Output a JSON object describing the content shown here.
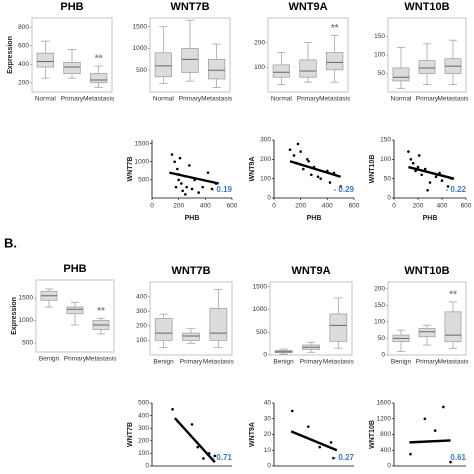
{
  "panel_labels": [
    "B."
  ],
  "chart_data": [
    {
      "type": "box",
      "title": "PHB",
      "ylabel": "Expression",
      "categories": [
        "Normal",
        "Primary",
        "Metastasis"
      ],
      "whisker_low": [
        250,
        250,
        150
      ],
      "q1": [
        370,
        300,
        200
      ],
      "median": [
        430,
        370,
        230
      ],
      "q3": [
        520,
        420,
        300
      ],
      "whisker_high": [
        650,
        560,
        380
      ],
      "significance": [
        null,
        null,
        "**"
      ],
      "ylim": [
        100,
        900
      ],
      "yticks": [
        200,
        400,
        600,
        800
      ]
    },
    {
      "type": "box",
      "title": "WNT7B",
      "categories": [
        "Normal",
        "Primary",
        "Metastasis"
      ],
      "whisker_low": [
        200,
        250,
        100
      ],
      "q1": [
        350,
        450,
        300
      ],
      "median": [
        600,
        750,
        500
      ],
      "q3": [
        900,
        1000,
        750
      ],
      "whisker_high": [
        1500,
        1650,
        1100
      ],
      "significance": [
        null,
        null,
        null
      ],
      "ylim": [
        0,
        1700
      ],
      "yticks": [
        500,
        1000,
        1500
      ]
    },
    {
      "type": "box",
      "title": "WNT9A",
      "categories": [
        "Normal",
        "Primary",
        "Metastasis"
      ],
      "whisker_low": [
        30,
        40,
        40
      ],
      "q1": [
        60,
        60,
        90
      ],
      "median": [
        80,
        85,
        120
      ],
      "q3": [
        110,
        130,
        160
      ],
      "whisker_high": [
        160,
        200,
        230
      ],
      "significance": [
        null,
        null,
        "**"
      ],
      "ylim": [
        0,
        300
      ],
      "yticks": [
        100,
        200
      ]
    },
    {
      "type": "box",
      "title": "WNT10B",
      "categories": [
        "Normal",
        "Primary",
        "Metastasis"
      ],
      "whisker_low": [
        10,
        20,
        20
      ],
      "q1": [
        30,
        50,
        50
      ],
      "median": [
        40,
        65,
        70
      ],
      "q3": [
        65,
        85,
        90
      ],
      "whisker_high": [
        120,
        130,
        140
      ],
      "significance": [
        null,
        null,
        null
      ],
      "ylim": [
        0,
        200
      ],
      "yticks": [
        50,
        100,
        150
      ]
    },
    {
      "type": "scatter",
      "xlabel": "PHB",
      "ylabel": "WNT7B",
      "r_label": "- 0.19",
      "x": [
        150,
        170,
        180,
        190,
        200,
        210,
        220,
        230,
        250,
        260,
        280,
        300,
        320,
        350,
        380,
        420,
        450,
        480,
        250,
        200
      ],
      "y": [
        1200,
        1000,
        300,
        800,
        500,
        1100,
        400,
        200,
        600,
        300,
        900,
        250,
        500,
        150,
        300,
        700,
        250,
        400,
        100,
        650
      ],
      "fit": {
        "x": [
          130,
          500
        ],
        "y": [
          700,
          400
        ]
      },
      "xlim": [
        0,
        600
      ],
      "xticks": [
        0,
        200,
        400,
        600
      ],
      "ylim": [
        0,
        1600
      ],
      "yticks": [
        500,
        1000,
        1500
      ]
    },
    {
      "type": "scatter",
      "xlabel": "PHB",
      "ylabel": "WNT9A",
      "r_label": "- 0.29",
      "x": [
        120,
        150,
        170,
        200,
        220,
        250,
        280,
        300,
        350,
        400,
        420,
        450,
        500,
        180,
        260,
        330
      ],
      "y": [
        250,
        220,
        180,
        240,
        150,
        200,
        120,
        160,
        100,
        140,
        80,
        130,
        60,
        280,
        190,
        110
      ],
      "fit": {
        "x": [
          120,
          500
        ],
        "y": [
          190,
          110
        ]
      },
      "xlim": [
        0,
        600
      ],
      "xticks": [
        0,
        200,
        400,
        600
      ],
      "ylim": [
        0,
        300
      ],
      "yticks": [
        0,
        100,
        200,
        300
      ]
    },
    {
      "type": "scatter",
      "xlabel": "PHB",
      "ylabel": "WNT10B",
      "r_label": "- 0.22",
      "x": [
        120,
        140,
        160,
        180,
        200,
        230,
        260,
        300,
        350,
        400,
        450,
        480,
        210,
        280,
        380
      ],
      "y": [
        120,
        100,
        90,
        70,
        80,
        60,
        75,
        40,
        55,
        45,
        30,
        50,
        110,
        20,
        65
      ],
      "fit": {
        "x": [
          120,
          500
        ],
        "y": [
          80,
          50
        ]
      },
      "xlim": [
        0,
        600
      ],
      "xticks": [
        0,
        200,
        400,
        600
      ],
      "ylim": [
        0,
        150
      ],
      "yticks": [
        0,
        50,
        100,
        150
      ]
    },
    {
      "type": "box",
      "title": "PHB",
      "ylabel": "Expression",
      "categories": [
        "Benign",
        "Primary",
        "Metastasis"
      ],
      "whisker_low": [
        1300,
        900,
        700
      ],
      "q1": [
        1450,
        1150,
        800
      ],
      "median": [
        1550,
        1250,
        900
      ],
      "q3": [
        1650,
        1300,
        1000
      ],
      "whisker_high": [
        1700,
        1400,
        1050
      ],
      "significance": [
        null,
        null,
        "**"
      ],
      "ylim": [
        300,
        1900
      ],
      "yticks": [
        500,
        1000,
        1500
      ]
    },
    {
      "type": "box",
      "title": "WNT7B",
      "categories": [
        "Benign",
        "Primary",
        "Metastasis"
      ],
      "whisker_low": [
        50,
        80,
        50
      ],
      "q1": [
        100,
        100,
        100
      ],
      "median": [
        150,
        130,
        150
      ],
      "q3": [
        250,
        150,
        320
      ],
      "whisker_high": [
        280,
        180,
        450
      ],
      "significance": [
        null,
        null,
        null
      ],
      "ylim": [
        0,
        500
      ],
      "yticks": [
        100,
        200,
        300,
        400
      ]
    },
    {
      "type": "box",
      "title": "WNT9A",
      "categories": [
        "Benign",
        "Primary",
        "Metastasis"
      ],
      "whisker_low": [
        20,
        60,
        150
      ],
      "q1": [
        50,
        120,
        300
      ],
      "median": [
        70,
        170,
        650
      ],
      "q3": [
        100,
        220,
        900
      ],
      "whisker_high": [
        130,
        280,
        1250
      ],
      "significance": [
        null,
        null,
        null
      ],
      "ylim": [
        0,
        1600
      ],
      "yticks": [
        0,
        500,
        1000,
        1500
      ]
    },
    {
      "type": "box",
      "title": "WNT10B",
      "categories": [
        "Benign",
        "Primary",
        "Metastasis"
      ],
      "whisker_low": [
        10,
        30,
        20
      ],
      "q1": [
        40,
        55,
        40
      ],
      "median": [
        50,
        70,
        60
      ],
      "q3": [
        60,
        80,
        130
      ],
      "whisker_high": [
        75,
        90,
        160
      ],
      "significance": [
        null,
        null,
        "**"
      ],
      "ylim": [
        0,
        220
      ],
      "yticks": [
        0,
        50,
        100,
        150,
        200
      ]
    },
    {
      "type": "scatter",
      "ylabel": "WNT7B",
      "r_label": "- 0.71",
      "x": [
        780,
        950,
        1000,
        1100,
        1050,
        1150
      ],
      "y": [
        450,
        330,
        150,
        100,
        60,
        80
      ],
      "fit": {
        "x": [
          800,
          1150
        ],
        "y": [
          380,
          30
        ]
      },
      "xlim": [
        600,
        1300
      ],
      "ylim": [
        0,
        500
      ],
      "yticks": [
        0,
        100,
        200,
        300,
        400,
        500
      ]
    },
    {
      "type": "scatter",
      "ylabel": "WNT9A",
      "r_label": "- 0.27",
      "x": [
        760,
        900,
        1000,
        1100,
        1120
      ],
      "y": [
        35,
        25,
        12,
        15,
        5
      ],
      "fit": {
        "x": [
          750,
          1150
        ],
        "y": [
          22,
          10
        ]
      },
      "xlim": [
        600,
        1300
      ],
      "ylim": [
        0,
        40
      ],
      "yticks": [
        0,
        10,
        20,
        30,
        40
      ]
    },
    {
      "type": "scatter",
      "ylabel": "WNT10B",
      "r_label": "0.61",
      "x": [
        760,
        900,
        1000,
        1080,
        1150
      ],
      "y": [
        300,
        1200,
        900,
        1500,
        100
      ],
      "fit": {
        "x": [
          750,
          1150
        ],
        "y": [
          600,
          650
        ]
      },
      "xlim": [
        600,
        1300
      ],
      "ylim": [
        0,
        1600
      ],
      "yticks": [
        0,
        400,
        800,
        1200,
        1600
      ]
    }
  ]
}
